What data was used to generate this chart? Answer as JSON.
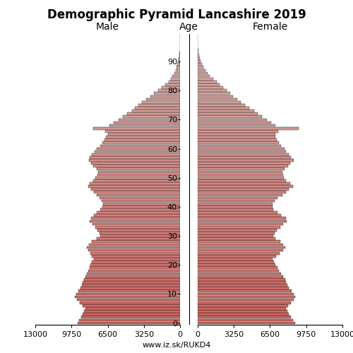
{
  "title": "Demographic Pyramid Lancashire 2019",
  "label_male": "Male",
  "label_female": "Female",
  "label_age": "Age",
  "url": "www.iz.sk/RUKD4",
  "xlim": 13000,
  "xticks": [
    0,
    3250,
    6500,
    9750,
    13000
  ],
  "ytick_positions": [
    0,
    10,
    20,
    30,
    40,
    50,
    60,
    70,
    80,
    90
  ],
  "bar_edgecolor": "#000000",
  "bar_linewidth": 0.25,
  "bar_height": 0.9,
  "male": [
    9200,
    9050,
    8900,
    8750,
    8600,
    8500,
    8750,
    9000,
    9250,
    9450,
    9350,
    9150,
    8950,
    8850,
    8750,
    8650,
    8500,
    8350,
    8250,
    8150,
    8050,
    7900,
    7750,
    7900,
    8050,
    8250,
    8400,
    8200,
    7900,
    7500,
    7200,
    7250,
    7400,
    7600,
    7850,
    8100,
    8000,
    7750,
    7500,
    7200,
    7000,
    6900,
    7050,
    7250,
    7500,
    7750,
    8000,
    8250,
    8100,
    7800,
    7600,
    7450,
    7350,
    7500,
    7800,
    8000,
    8200,
    8100,
    7900,
    7700,
    7500,
    7200,
    7000,
    6800,
    6650,
    6500,
    6700,
    7800,
    6350,
    5950,
    5550,
    5150,
    4750,
    4350,
    4050,
    3750,
    3450,
    3050,
    2650,
    2350,
    1950,
    1650,
    1350,
    1050,
    850,
    680,
    530,
    420,
    320,
    240,
    170,
    120,
    85,
    58,
    37,
    23,
    13,
    8,
    4,
    2
  ],
  "female": [
    8750,
    8550,
    8350,
    8200,
    8050,
    7900,
    8100,
    8350,
    8600,
    8750,
    8650,
    8450,
    8200,
    8050,
    7950,
    7850,
    7700,
    7500,
    7300,
    7150,
    7000,
    6850,
    6750,
    7050,
    7350,
    7650,
    7850,
    7700,
    7400,
    7000,
    6800,
    6900,
    7100,
    7400,
    7700,
    8000,
    7900,
    7500,
    7200,
    6800,
    6700,
    6700,
    6900,
    7200,
    7600,
    7900,
    8200,
    8550,
    8300,
    7950,
    7750,
    7700,
    7600,
    7800,
    8100,
    8300,
    8600,
    8400,
    8200,
    7950,
    7800,
    7500,
    7300,
    7100,
    7000,
    6950,
    7250,
    9100,
    7000,
    6600,
    6200,
    5800,
    5400,
    5050,
    4650,
    4250,
    3900,
    3550,
    3200,
    2900,
    2600,
    2300,
    2000,
    1700,
    1400,
    1100,
    880,
    680,
    530,
    400,
    295,
    210,
    145,
    96,
    62,
    38,
    22,
    12,
    6,
    3
  ]
}
